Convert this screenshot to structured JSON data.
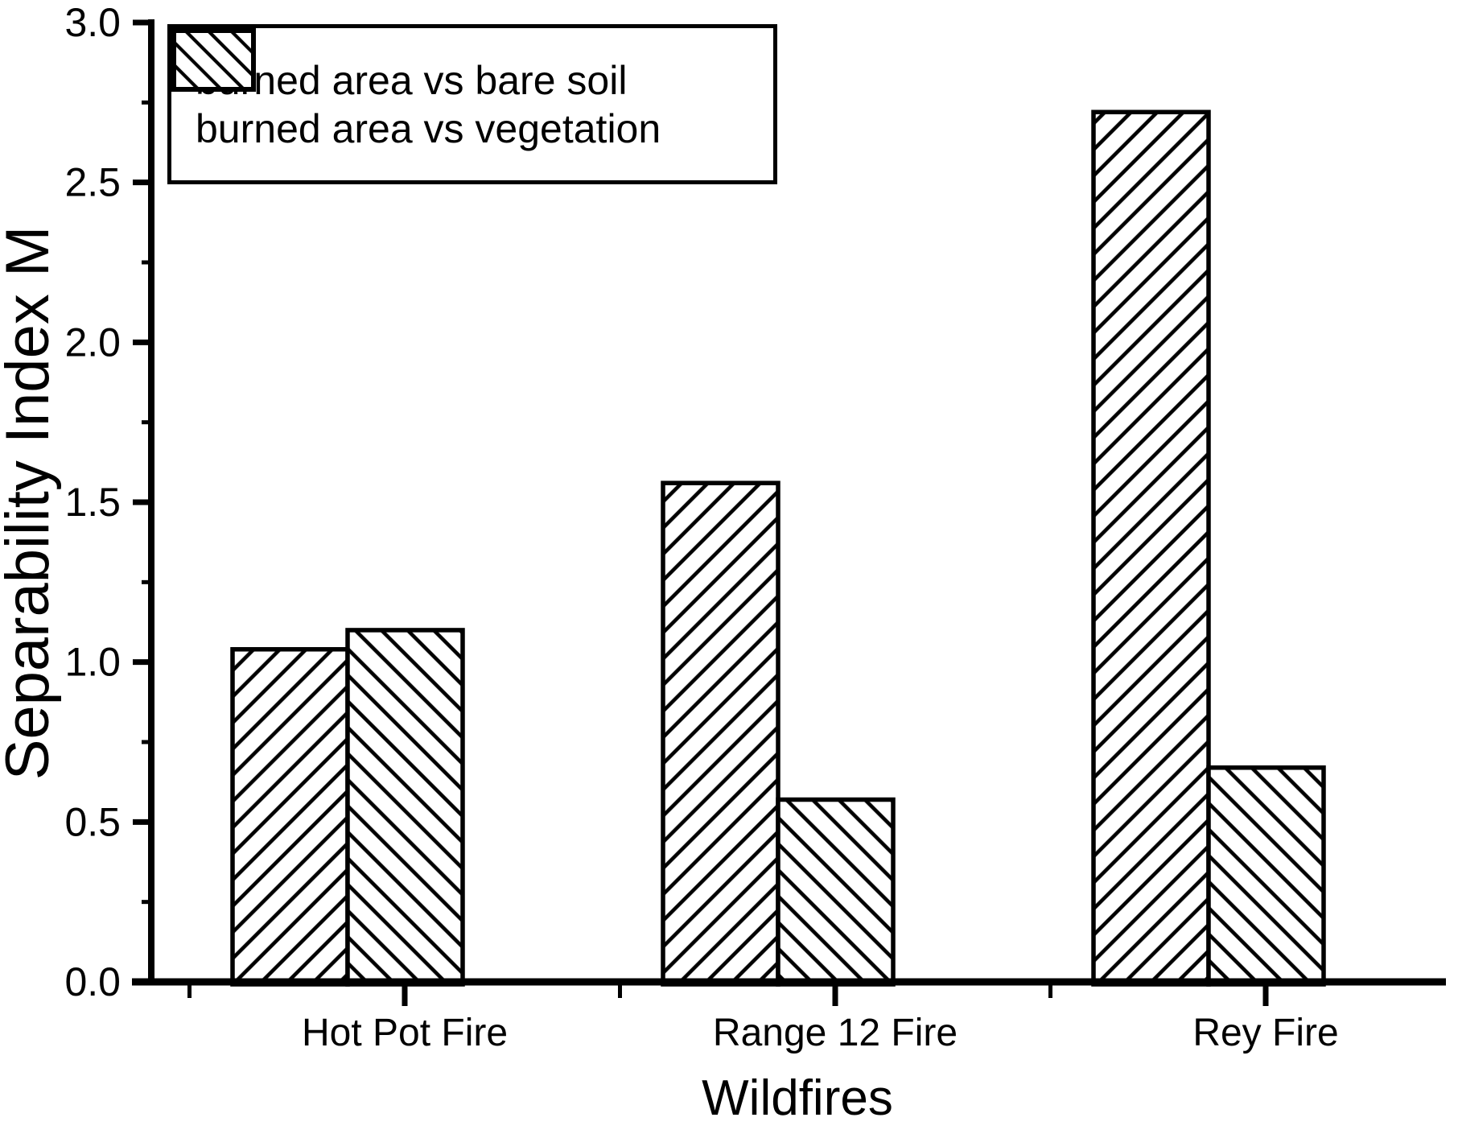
{
  "chart_data": {
    "type": "bar",
    "title": "",
    "xlabel": "Wildfires",
    "ylabel": "Separability Index M",
    "categories": [
      "Hot Pot Fire",
      "Range 12 Fire",
      "Rey Fire"
    ],
    "series": [
      {
        "name": "burned area vs bare soil",
        "hatch": "forward-diagonal",
        "values": [
          1.04,
          1.56,
          2.72
        ]
      },
      {
        "name": "burned area vs vegetation",
        "hatch": "backward-diagonal",
        "values": [
          1.1,
          0.57,
          0.67
        ]
      }
    ],
    "ylim": [
      0.0,
      3.0
    ],
    "y_major_step": 0.5,
    "y_minor_step": 0.25,
    "y_tick_labels": [
      "0.0",
      "0.5",
      "1.0",
      "1.5",
      "2.0",
      "2.5",
      "3.0"
    ],
    "grid": false,
    "legend_position": "top-left",
    "bar_outline_color": "#000000",
    "background_color": "#ffffff"
  }
}
